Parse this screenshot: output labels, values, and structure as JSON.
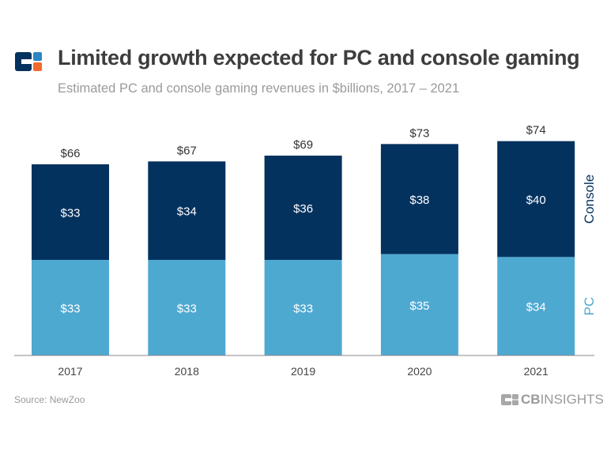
{
  "header": {
    "title": "Limited growth expected for PC and console gaming",
    "subtitle": "Estimated PC and console gaming revenues in $billions, 2017 – 2021"
  },
  "footer": {
    "source": "Source: NewZoo",
    "brand_bold": "CB",
    "brand_light": "INSIGHTS"
  },
  "colors": {
    "console": "#04325f",
    "pc": "#4ea9d1",
    "logo_navy": "#04325f",
    "logo_blue": "#2a86c4",
    "logo_orange": "#f26a2e"
  },
  "chart_data": {
    "type": "stacked-bar",
    "title": "Limited growth expected for PC and console gaming",
    "categories": [
      "2017",
      "2018",
      "2019",
      "2020",
      "2021"
    ],
    "series": [
      {
        "name": "PC",
        "values": [
          33,
          33,
          33,
          35,
          34
        ],
        "labels": [
          "$33",
          "$33",
          "$33",
          "$35",
          "$34"
        ]
      },
      {
        "name": "Console",
        "values": [
          33,
          34,
          36,
          38,
          40
        ],
        "labels": [
          "$33",
          "$34",
          "$36",
          "$38",
          "$40"
        ]
      }
    ],
    "totals": [
      66,
      67,
      69,
      73,
      74
    ],
    "total_labels": [
      "$66",
      "$67",
      "$69",
      "$73",
      "$74"
    ],
    "ylim": [
      0,
      80
    ],
    "grid": false,
    "legend": "right, labels beside final bar"
  }
}
